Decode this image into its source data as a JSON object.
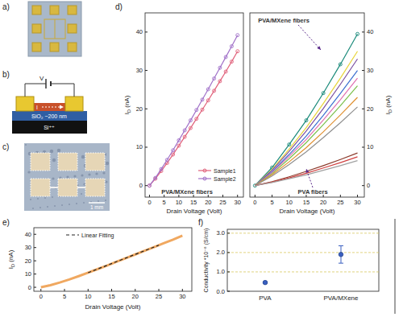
{
  "panels": {
    "a": {
      "label": "a)"
    },
    "b": {
      "label": "b)",
      "voltage": "V",
      "current": "I",
      "oxide": "SiO₂ ~200 nm",
      "substrate": "Si⁺⁺"
    },
    "c": {
      "label": "c)",
      "scale_bar": "1 mm"
    },
    "d": {
      "label": "d)"
    },
    "e": {
      "label": "e)"
    },
    "f": {
      "label": "f)"
    }
  },
  "chart_data": [
    {
      "type": "line",
      "x_label": "Drain Voltage (Volt)",
      "y_label": {
        "main": "I",
        "sub": "D",
        "unit": "(nA)"
      },
      "x": [
        0,
        2,
        4,
        6,
        8,
        10,
        12,
        14,
        16,
        18,
        20,
        22,
        24,
        26,
        28,
        30
      ],
      "xlim": [
        -1.5,
        32
      ],
      "xticks": [
        0,
        5,
        10,
        15,
        20,
        25,
        30
      ],
      "ylim": [
        -3,
        45
      ],
      "yticks": [
        0,
        10,
        20,
        30,
        40
      ],
      "legend": "lower right",
      "annotations": [
        "PVA/MXene fibers"
      ],
      "series": [
        {
          "name": "Sample1",
          "color": "#e0607a",
          "marker": "circle",
          "values": [
            0,
            1.8,
            3.8,
            5.9,
            8.1,
            10.4,
            12.7,
            15.0,
            17.4,
            19.8,
            22.2,
            24.7,
            27.2,
            29.7,
            32.3,
            35.0
          ]
        },
        {
          "name": "Sample2",
          "color": "#a070c8",
          "marker": "circle",
          "values": [
            0,
            2.0,
            4.3,
            6.7,
            9.2,
            11.8,
            14.4,
            17.0,
            19.7,
            22.4,
            25.1,
            27.9,
            30.7,
            33.5,
            36.3,
            39.2
          ]
        }
      ]
    },
    {
      "type": "line",
      "x_label": "Drain Voltage (Volt)",
      "y_label": {
        "main": "I",
        "sub": "D",
        "unit": "(nA)"
      },
      "x": [
        0,
        5,
        10,
        15,
        20,
        25,
        30
      ],
      "xlim": [
        -1.5,
        32
      ],
      "xticks": [
        0,
        5,
        10,
        15,
        20,
        25,
        30
      ],
      "ylim": [
        -3,
        45
      ],
      "yticks": [
        0,
        10,
        20,
        30,
        40
      ],
      "annotations": [
        "PVA/MXene fibers",
        "PVA fibers"
      ],
      "series": [
        {
          "color": "#1a8a7a",
          "marker": "circle",
          "values": [
            0,
            4.7,
            10.7,
            17.0,
            24.1,
            31.6,
            39.5
          ]
        },
        {
          "color": "#e8d43a",
          "values": [
            0,
            4.2,
            9.5,
            15.1,
            21.4,
            28.0,
            35.0
          ]
        },
        {
          "color": "#7b4fa0",
          "values": [
            0,
            4.0,
            8.9,
            14.2,
            20.1,
            26.4,
            33.0
          ]
        },
        {
          "color": "#3a6fd0",
          "values": [
            0,
            3.6,
            8.1,
            12.9,
            18.3,
            24.0,
            30.0
          ]
        },
        {
          "color": "#e070b0",
          "values": [
            0,
            3.4,
            7.6,
            12.0,
            17.1,
            22.4,
            28.0
          ]
        },
        {
          "color": "#7ac04a",
          "values": [
            0,
            3.1,
            7.0,
            11.2,
            15.9,
            20.8,
            26.0
          ]
        },
        {
          "color": "#e09030",
          "values": [
            0,
            2.8,
            6.2,
            9.9,
            14.0,
            18.4,
            23.0
          ]
        },
        {
          "color": "#909090",
          "values": [
            0,
            2.5,
            5.5,
            8.8,
            12.5,
            16.4,
            20.5
          ]
        },
        {
          "color": "#8b3a2a",
          "values": [
            0,
            1.0,
            2.3,
            3.7,
            5.2,
            6.8,
            8.5
          ]
        },
        {
          "color": "#d04040",
          "values": [
            0,
            0.9,
            2.0,
            3.2,
            4.6,
            6.0,
            7.5
          ]
        },
        {
          "color": "#a0a0a0",
          "values": [
            0,
            0.8,
            1.8,
            2.8,
            4.0,
            5.2,
            6.5
          ]
        }
      ]
    },
    {
      "type": "line",
      "x_label": "Drain Voltage (Volt)",
      "y_label": {
        "main": "I",
        "sub": "D",
        "unit": "(nA)"
      },
      "xlim": [
        -1.5,
        32
      ],
      "xticks": [
        0,
        5,
        10,
        15,
        20,
        25,
        30
      ],
      "ylim": [
        -3,
        45
      ],
      "yticks": [
        0,
        10,
        20,
        30,
        40
      ],
      "legend": "upper left",
      "series": [
        {
          "color": "#f0a860",
          "x": [
            0,
            2,
            4,
            6,
            8,
            10,
            12,
            14,
            16,
            18,
            20,
            22,
            24,
            26,
            28,
            30
          ],
          "values": [
            0,
            1.6,
            3.6,
            5.9,
            8.4,
            11.0,
            13.7,
            16.4,
            19.2,
            22.0,
            24.8,
            27.6,
            30.4,
            33.2,
            36.0,
            39.0
          ]
        },
        {
          "name": "Linear Fitting",
          "color": "#222222",
          "line_style": "dashed",
          "x": [
            10,
            25
          ],
          "values": [
            11.0,
            31.8
          ]
        }
      ]
    },
    {
      "type": "scatter",
      "y_label": "Conductivity *10⁻⁸ (S/cm)",
      "categories": [
        "PVA",
        "PVA/MXene"
      ],
      "values": [
        0.45,
        1.9
      ],
      "errors": [
        0.03,
        0.45
      ],
      "ylim": [
        0,
        3.2
      ],
      "yticks": [
        {
          "value": 0,
          "label": "0.0"
        },
        {
          "value": 1,
          "label": "1.0"
        },
        {
          "value": 2,
          "label": "2.0"
        },
        {
          "value": 3,
          "label": "3.0"
        }
      ],
      "grid": true,
      "color": "#3a5fc0",
      "marker": "circle"
    }
  ]
}
